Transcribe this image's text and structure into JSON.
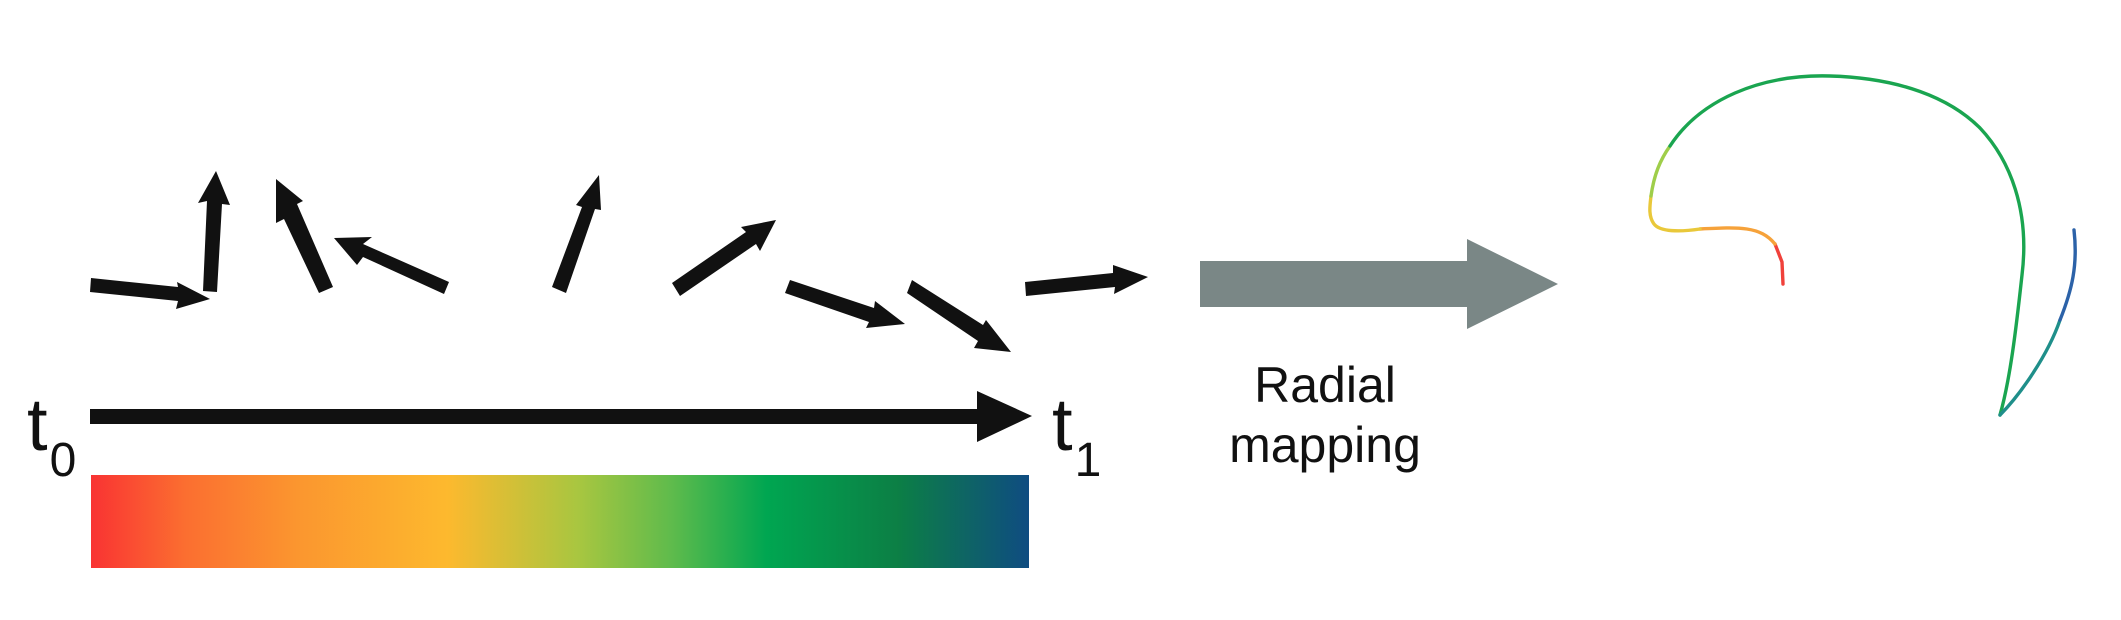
{
  "labels": {
    "t0": {
      "base": "t",
      "subscript": "0"
    },
    "t1": {
      "base": "t",
      "subscript": "1"
    },
    "mapping_line1": "Radial",
    "mapping_line2": "mapping"
  },
  "colors": {
    "vector_arrows": "#111111",
    "timeline": "#111111",
    "mapping_arrow": "#7a8786",
    "colorbar_stops": [
      "#f93333",
      "#fb8f2f",
      "#fdb92e",
      "#8bc747",
      "#00a651",
      "#0c7f45",
      "#0f4c81"
    ]
  },
  "icons": {
    "vector_arrow": "arrow-icon",
    "timeline_arrow": "arrow-right-icon",
    "mapping_arrow": "block-arrow-right-icon"
  }
}
